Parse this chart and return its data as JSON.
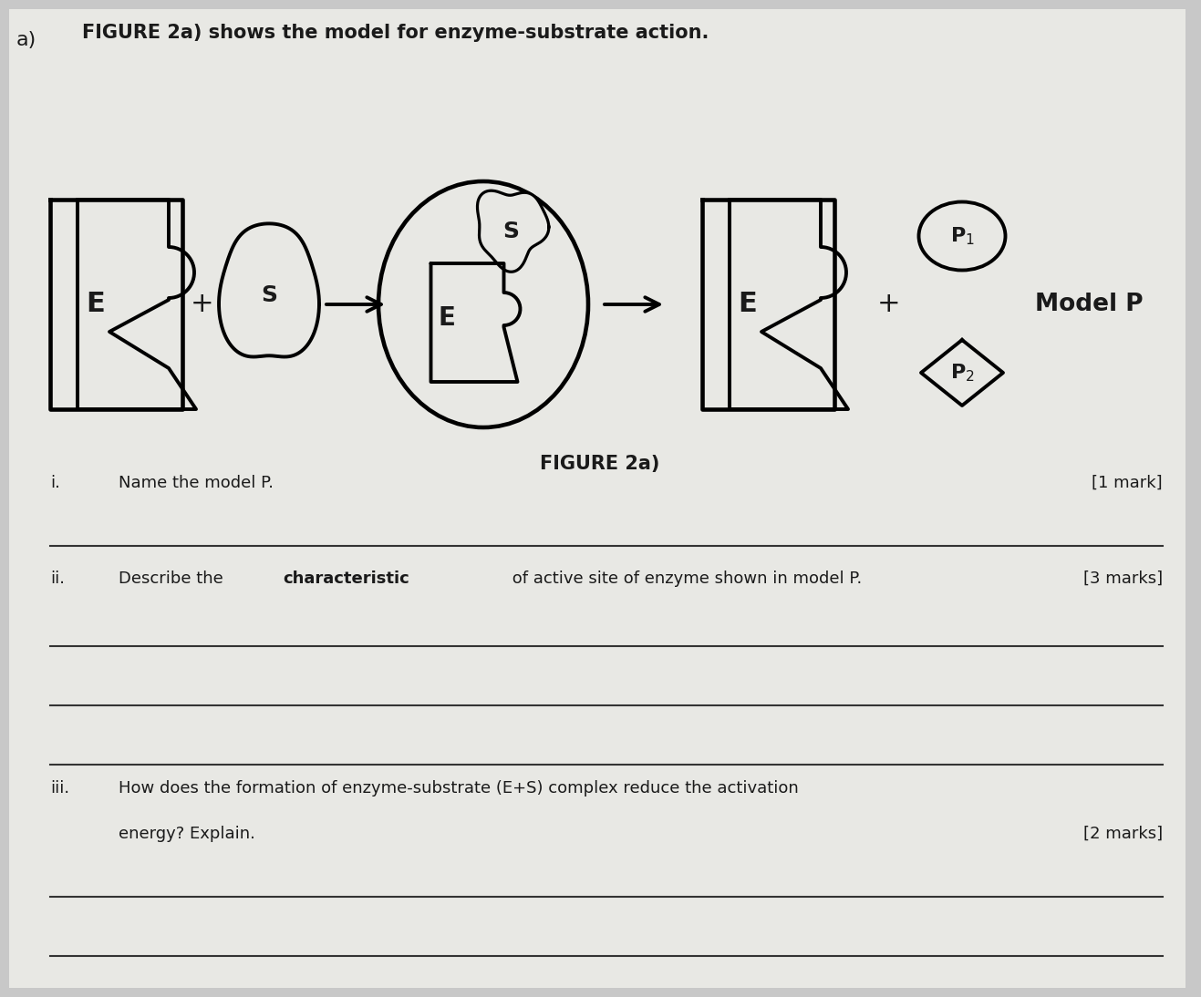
{
  "bg_color": "#c8c8c8",
  "paper_color": "#e8e8e4",
  "text_color": "#1a1a1a",
  "line_color": "#333333",
  "title_text": "FIGURE 2a) shows the model for enzyme-substrate action.",
  "figure_label": "FIGURE 2a)",
  "section_label": "a)",
  "q1_num": "i.",
  "q1_text": "Name the model P.",
  "q1_mark": "[1 mark]",
  "q2_num": "ii.",
  "q2_pre": "Describe the ",
  "q2_bold": "characteristic",
  "q2_post": " of active site of enzyme shown in model P.",
  "q2_mark": "[3 marks]",
  "q3_num": "iii.",
  "q3_line1": "How does the formation of enzyme-substrate (E+S) complex reduce the activation",
  "q3_line2": "energy? Explain.",
  "q3_mark": "[2 marks]"
}
